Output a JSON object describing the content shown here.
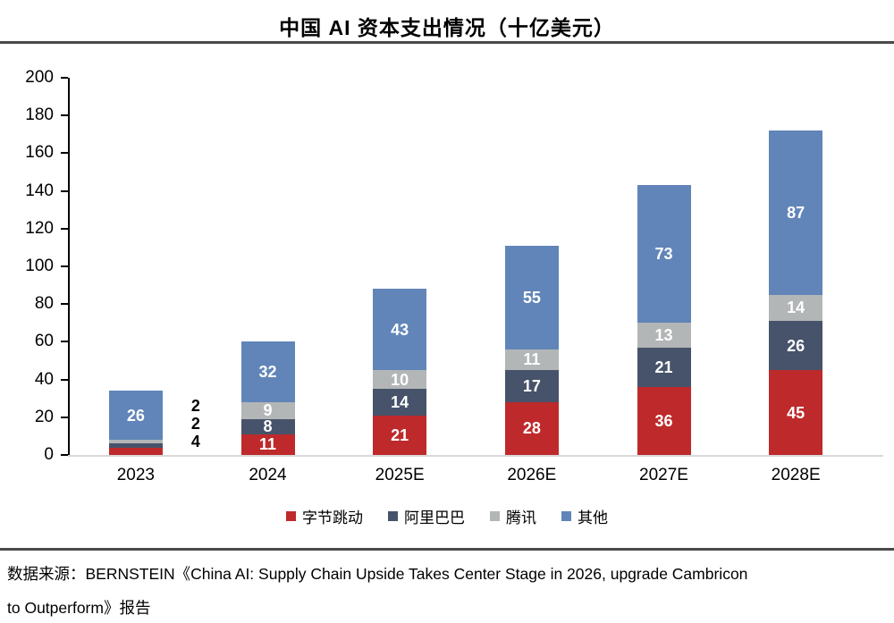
{
  "title": "中国 AI 资本支出情况（十亿美元）",
  "chart_data": {
    "type": "bar",
    "stacked": true,
    "title": "中国 AI 资本支出情况（十亿美元）",
    "categories": [
      "2023",
      "2024",
      "2025E",
      "2026E",
      "2027E",
      "2028E"
    ],
    "series": [
      {
        "name": "字节跳动",
        "color": "#be2a2b",
        "values": [
          4,
          11,
          21,
          28,
          36,
          45
        ]
      },
      {
        "name": "阿里巴巴",
        "color": "#46536a",
        "values": [
          2,
          8,
          14,
          17,
          21,
          26
        ]
      },
      {
        "name": "腾讯",
        "color": "#b3b6b6",
        "values": [
          2,
          9,
          10,
          11,
          13,
          14
        ]
      },
      {
        "name": "其他",
        "color": "#6185b8",
        "values": [
          26,
          32,
          43,
          55,
          73,
          87
        ]
      }
    ],
    "totals": [
      34,
      60,
      88,
      111,
      143,
      172
    ],
    "xlabel": "",
    "ylabel": "",
    "ylim": [
      0,
      200
    ],
    "ytick_step": 20,
    "yticks": [
      0,
      20,
      40,
      60,
      80,
      100,
      120,
      140,
      160,
      180,
      200
    ],
    "grid": false,
    "legend_position": "bottom",
    "value_labels": true,
    "outside_labels_note": "2023 small segments labeled beside bar: 2, 2, 4 (top to bottom)"
  },
  "source": {
    "line1": "数据来源：BERNSTEIN《China AI: Supply Chain Upside Takes Center Stage in 2026, upgrade Cambricon",
    "line2": "to Outperform》报告"
  },
  "colors": {
    "separator": "#4a4a4a",
    "axis": "#000000",
    "baseline": "#d9d9d9",
    "bar_value_text": "#ffffff",
    "outside_value_text": "#000000"
  }
}
